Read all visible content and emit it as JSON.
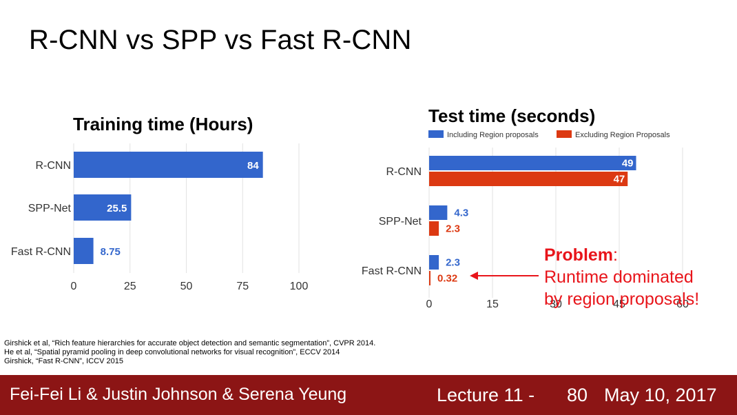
{
  "slide": {
    "title": "R-CNN vs SPP vs Fast R-CNN",
    "callout": {
      "heading": "Problem",
      "line1": "Runtime dominated",
      "line2": "by region proposals!"
    },
    "citations": [
      "Girshick et al, “Rich feature hierarchies for accurate object detection and semantic segmentation”, CVPR 2014.",
      "He et al, “Spatial pyramid pooling in deep convolutional networks for visual recognition”, ECCV 2014",
      "Girshick, “Fast R-CNN”, ICCV 2015"
    ],
    "footer": {
      "authors": "Fei-Fei Li & Justin Johnson & Serena Yeung",
      "lecture": "Lecture 11 -",
      "page": "80",
      "date": "May 10, 2017"
    },
    "colors": {
      "blue": "#3366cc",
      "red": "#dc3912",
      "callout_red": "#e8141a",
      "footer_bg": "#8c1515"
    }
  },
  "chart_data": [
    {
      "type": "bar",
      "orientation": "horizontal",
      "title": "Training time (Hours)",
      "categories": [
        "R-CNN",
        "SPP-Net",
        "Fast R-CNN"
      ],
      "series": [
        {
          "values": [
            84,
            25.5,
            8.75
          ],
          "labels": [
            "84",
            "25.5",
            "8.75"
          ],
          "color": "#3366cc"
        }
      ],
      "xlim": [
        0,
        100
      ],
      "xticks": [
        0,
        25,
        50,
        75,
        100
      ],
      "grid": true
    },
    {
      "type": "bar",
      "orientation": "horizontal",
      "title": "Test time (seconds)",
      "categories": [
        "R-CNN",
        "SPP-Net",
        "Fast R-CNN"
      ],
      "series": [
        {
          "name": "Including Region proposals",
          "values": [
            49,
            4.3,
            2.3
          ],
          "labels": [
            "49",
            "4.3",
            "2.3"
          ],
          "color": "#3366cc"
        },
        {
          "name": "Excluding Region Proposals",
          "values": [
            47,
            2.3,
            0.32
          ],
          "labels": [
            "47",
            "2.3",
            "0.32"
          ],
          "color": "#dc3912"
        }
      ],
      "xlim": [
        0,
        60
      ],
      "xticks": [
        0,
        15,
        30,
        45,
        60
      ],
      "legend": "top-left",
      "grid": true
    }
  ]
}
